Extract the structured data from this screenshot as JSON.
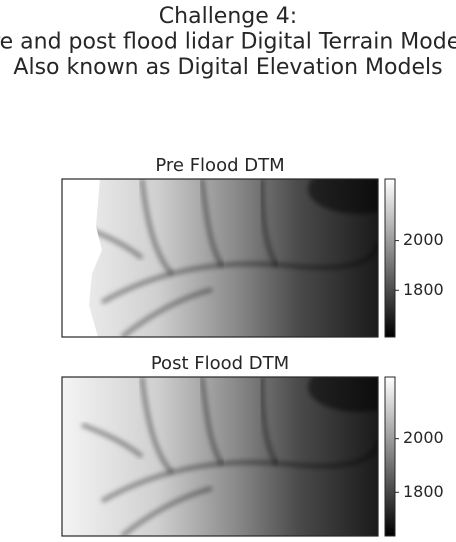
{
  "chart_data": [
    {
      "type": "image",
      "suptitle": [
        "Challenge 4:",
        "Pre and post flood lidar Digital Terrain Models",
        "Also known as Digital Elevation Models"
      ],
      "title": "Pre Flood DTM",
      "clim": [
        1612,
        2248
      ],
      "cticks": [
        1800,
        2000
      ],
      "colormap": "gray",
      "nodata_left": true
    },
    {
      "type": "image",
      "title": "Post Flood DTM",
      "clim": [
        1637,
        2230
      ],
      "cticks": [
        1800,
        2000
      ],
      "colormap": "gray",
      "nodata_left": false
    }
  ]
}
